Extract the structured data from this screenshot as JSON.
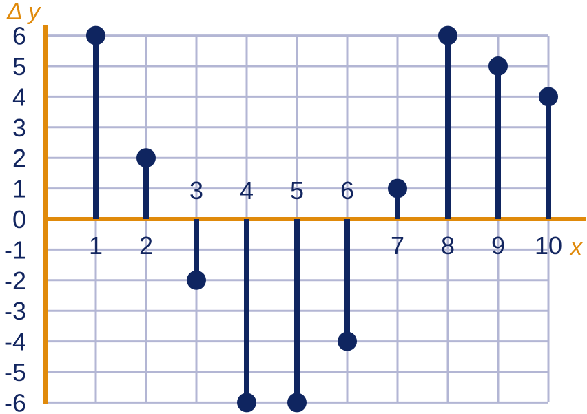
{
  "chart_data": {
    "type": "stem",
    "x": [
      1,
      2,
      3,
      4,
      5,
      6,
      7,
      8,
      9,
      10
    ],
    "values": [
      6,
      2,
      -2,
      -6,
      -6,
      -4,
      1,
      6,
      5,
      4
    ],
    "xlabel": "x",
    "ylabel": "Δ y",
    "yticks": [
      "6",
      "5",
      "4",
      "3",
      "2",
      "1",
      "0",
      "-1",
      "-2",
      "-3",
      "-4",
      "-5",
      "-6"
    ],
    "xlim": [
      0,
      10
    ],
    "ylim": [
      -6,
      6
    ],
    "grid": true,
    "colors": {
      "axis": "#e08a0b",
      "series": "#0f2560",
      "grid": "#b3b6d4",
      "text": "#12255f"
    }
  }
}
